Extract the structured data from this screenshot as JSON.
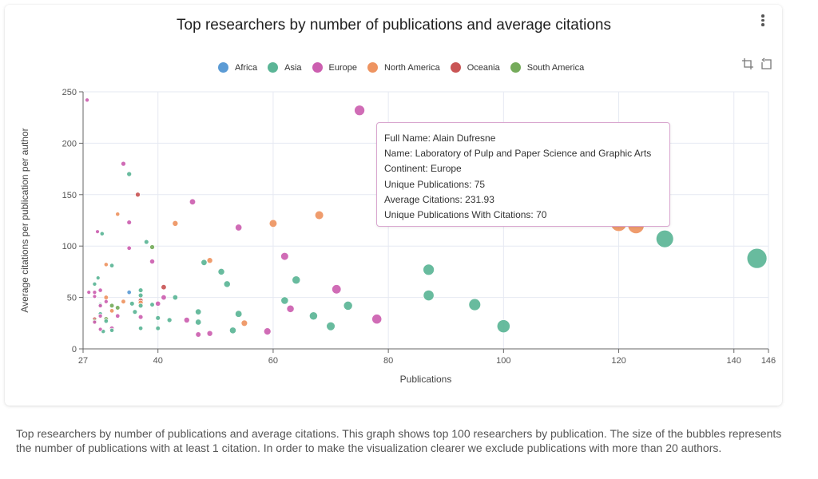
{
  "card": {
    "menu_icon": "more-vertical-icon",
    "tools": [
      {
        "name": "crop-icon",
        "label": "Zoom"
      },
      {
        "name": "reset-zoom-icon",
        "label": "Reset zoom"
      }
    ]
  },
  "tooltip": {
    "lines": [
      "Full Name: Alain Dufresne",
      "Name: Laboratory of Pulp and Paper Science and Graphic Arts",
      "Continent: Europe",
      "Unique Publications: 75",
      "Average Citations: 231.93",
      "Unique Publications With Citations: 70"
    ]
  },
  "caption": "Top researchers by number of publications and average citations. This graph shows top 100 researchers by publication. The size of the bubbles represents the number of publications with at least 1 citation. In order to make the visualization clearer we exclude publications with more than 20 authors.",
  "chart_data": {
    "type": "scatter",
    "title": "Top researchers by number of publications and average citations",
    "xlabel": "Publications",
    "ylabel": "Average citations per publication per author",
    "xlim": [
      27,
      146
    ],
    "ylim": [
      0,
      250
    ],
    "xticks": [
      27,
      40,
      60,
      80,
      100,
      120,
      140,
      146
    ],
    "yticks": [
      0,
      50,
      100,
      150,
      200,
      250
    ],
    "grid": true,
    "legend_position": "top",
    "legend": [
      {
        "name": "Africa",
        "color": "#5b9bd5"
      },
      {
        "name": "Asia",
        "color": "#5bb596"
      },
      {
        "name": "Europe",
        "color": "#cc5fb0"
      },
      {
        "name": "North America",
        "color": "#ee9461"
      },
      {
        "name": "Oceania",
        "color": "#c95555"
      },
      {
        "name": "South America",
        "color": "#75ab5b"
      }
    ],
    "points": [
      {
        "x": 75,
        "y": 231.93,
        "continent": "Europe",
        "with_citations": 70
      },
      {
        "x": 27.7,
        "y": 242,
        "continent": "Europe",
        "with_citations": 27
      },
      {
        "x": 34,
        "y": 180,
        "continent": "Europe",
        "with_citations": 32
      },
      {
        "x": 35,
        "y": 170,
        "continent": "Asia",
        "with_citations": 32
      },
      {
        "x": 36.5,
        "y": 150,
        "continent": "Oceania",
        "with_citations": 32
      },
      {
        "x": 33,
        "y": 131,
        "continent": "North America",
        "with_citations": 28
      },
      {
        "x": 35,
        "y": 123,
        "continent": "Europe",
        "with_citations": 31
      },
      {
        "x": 46,
        "y": 143,
        "continent": "Europe",
        "with_citations": 40
      },
      {
        "x": 43,
        "y": 122,
        "continent": "North America",
        "with_citations": 38
      },
      {
        "x": 54,
        "y": 118,
        "continent": "Europe",
        "with_citations": 45
      },
      {
        "x": 60,
        "y": 122,
        "continent": "North America",
        "with_citations": 52
      },
      {
        "x": 68,
        "y": 130,
        "continent": "North America",
        "with_citations": 58
      },
      {
        "x": 29.5,
        "y": 114,
        "continent": "Europe",
        "with_citations": 26
      },
      {
        "x": 30.3,
        "y": 112,
        "continent": "Asia",
        "with_citations": 28
      },
      {
        "x": 35,
        "y": 98,
        "continent": "Europe",
        "with_citations": 29
      },
      {
        "x": 38,
        "y": 104,
        "continent": "Asia",
        "with_citations": 31
      },
      {
        "x": 39,
        "y": 99,
        "continent": "South America",
        "with_citations": 32
      },
      {
        "x": 39,
        "y": 85,
        "continent": "Europe",
        "with_citations": 33
      },
      {
        "x": 31,
        "y": 82,
        "continent": "North America",
        "with_citations": 28
      },
      {
        "x": 32,
        "y": 81,
        "continent": "Asia",
        "with_citations": 29
      },
      {
        "x": 48,
        "y": 84,
        "continent": "Asia",
        "with_citations": 40
      },
      {
        "x": 49,
        "y": 86,
        "continent": "North America",
        "with_citations": 38
      },
      {
        "x": 51,
        "y": 75,
        "continent": "Asia",
        "with_citations": 44
      },
      {
        "x": 52,
        "y": 63,
        "continent": "Asia",
        "with_citations": 44
      },
      {
        "x": 62,
        "y": 90,
        "continent": "Europe",
        "with_citations": 52
      },
      {
        "x": 64,
        "y": 67,
        "continent": "Asia",
        "with_citations": 55
      },
      {
        "x": 71,
        "y": 58,
        "continent": "Europe",
        "with_citations": 62
      },
      {
        "x": 87,
        "y": 77,
        "continent": "Asia",
        "with_citations": 75
      },
      {
        "x": 87,
        "y": 52,
        "continent": "Asia",
        "with_citations": 72
      },
      {
        "x": 95,
        "y": 43,
        "continent": "Asia",
        "with_citations": 80
      },
      {
        "x": 100,
        "y": 22,
        "continent": "Asia",
        "with_citations": 88
      },
      {
        "x": 120,
        "y": 122,
        "continent": "North America",
        "with_citations": 108
      },
      {
        "x": 123,
        "y": 120,
        "continent": "North America",
        "with_citations": 110
      },
      {
        "x": 128,
        "y": 107,
        "continent": "Asia",
        "with_citations": 118
      },
      {
        "x": 144,
        "y": 88,
        "continent": "Asia",
        "with_citations": 135
      },
      {
        "x": 62,
        "y": 47,
        "continent": "Asia",
        "with_citations": 50
      },
      {
        "x": 63,
        "y": 39,
        "continent": "Europe",
        "with_citations": 50
      },
      {
        "x": 67,
        "y": 32,
        "continent": "Asia",
        "with_citations": 55
      },
      {
        "x": 70,
        "y": 22,
        "continent": "Asia",
        "with_citations": 58
      },
      {
        "x": 73,
        "y": 42,
        "continent": "Asia",
        "with_citations": 60
      },
      {
        "x": 78,
        "y": 29,
        "continent": "Europe",
        "with_citations": 66
      },
      {
        "x": 59,
        "y": 17,
        "continent": "Europe",
        "with_citations": 48
      },
      {
        "x": 54,
        "y": 34,
        "continent": "Asia",
        "with_citations": 46
      },
      {
        "x": 55,
        "y": 25,
        "continent": "North America",
        "with_citations": 42
      },
      {
        "x": 53,
        "y": 18,
        "continent": "Asia",
        "with_citations": 44
      },
      {
        "x": 49,
        "y": 15,
        "continent": "Europe",
        "with_citations": 38
      },
      {
        "x": 47,
        "y": 14,
        "continent": "Europe",
        "with_citations": 36
      },
      {
        "x": 45,
        "y": 28,
        "continent": "Europe",
        "with_citations": 38
      },
      {
        "x": 47,
        "y": 36,
        "continent": "Asia",
        "with_citations": 40
      },
      {
        "x": 47,
        "y": 26,
        "continent": "Asia",
        "with_citations": 40
      },
      {
        "x": 43,
        "y": 50,
        "continent": "Asia",
        "with_citations": 35
      },
      {
        "x": 41,
        "y": 60,
        "continent": "Oceania",
        "with_citations": 35
      },
      {
        "x": 41,
        "y": 50,
        "continent": "Europe",
        "with_citations": 35
      },
      {
        "x": 42,
        "y": 28,
        "continent": "Asia",
        "with_citations": 32
      },
      {
        "x": 40,
        "y": 44,
        "continent": "Europe",
        "with_citations": 34
      },
      {
        "x": 40,
        "y": 30,
        "continent": "Asia",
        "with_citations": 31
      },
      {
        "x": 40,
        "y": 20,
        "continent": "Asia",
        "with_citations": 30
      },
      {
        "x": 39,
        "y": 43,
        "continent": "Asia",
        "with_citations": 30
      },
      {
        "x": 37,
        "y": 57,
        "continent": "Asia",
        "with_citations": 31
      },
      {
        "x": 37,
        "y": 52,
        "continent": "Asia",
        "with_citations": 31
      },
      {
        "x": 37,
        "y": 47,
        "continent": "Oceania",
        "with_citations": 32
      },
      {
        "x": 37,
        "y": 45,
        "continent": "North America",
        "with_citations": 32
      },
      {
        "x": 37,
        "y": 42,
        "continent": "Asia",
        "with_citations": 31
      },
      {
        "x": 37,
        "y": 31,
        "continent": "Europe",
        "with_citations": 31
      },
      {
        "x": 37,
        "y": 20,
        "continent": "Asia",
        "with_citations": 29
      },
      {
        "x": 36,
        "y": 36,
        "continent": "Asia",
        "with_citations": 31
      },
      {
        "x": 35.5,
        "y": 44,
        "continent": "Asia",
        "with_citations": 31
      },
      {
        "x": 35,
        "y": 55,
        "continent": "Africa",
        "with_citations": 29
      },
      {
        "x": 34,
        "y": 46,
        "continent": "North America",
        "with_citations": 30
      },
      {
        "x": 33,
        "y": 40,
        "continent": "South America",
        "with_citations": 30
      },
      {
        "x": 33,
        "y": 32,
        "continent": "Europe",
        "with_citations": 29
      },
      {
        "x": 32,
        "y": 42,
        "continent": "South America",
        "with_citations": 30
      },
      {
        "x": 32,
        "y": 37,
        "continent": "North America",
        "with_citations": 29
      },
      {
        "x": 32,
        "y": 20,
        "continent": "Europe",
        "with_citations": 30
      },
      {
        "x": 32,
        "y": 18,
        "continent": "Asia",
        "with_citations": 28
      },
      {
        "x": 31,
        "y": 50,
        "continent": "North America",
        "with_citations": 30
      },
      {
        "x": 31,
        "y": 46,
        "continent": "Europe",
        "with_citations": 27
      },
      {
        "x": 31,
        "y": 29,
        "continent": "South America",
        "with_citations": 30
      },
      {
        "x": 31,
        "y": 27,
        "continent": "Asia",
        "with_citations": 29
      },
      {
        "x": 30.5,
        "y": 17,
        "continent": "Asia",
        "with_citations": 28
      },
      {
        "x": 30,
        "y": 57,
        "continent": "Europe",
        "with_citations": 28
      },
      {
        "x": 30,
        "y": 43,
        "continent": "Asia",
        "with_citations": 28
      },
      {
        "x": 30,
        "y": 42,
        "continent": "Europe",
        "with_citations": 27
      },
      {
        "x": 30,
        "y": 34,
        "continent": "Asia",
        "with_citations": 28
      },
      {
        "x": 30,
        "y": 32,
        "continent": "Europe",
        "with_citations": 27
      },
      {
        "x": 30,
        "y": 19,
        "continent": "Europe",
        "with_citations": 26
      },
      {
        "x": 29.6,
        "y": 69,
        "continent": "Asia",
        "with_citations": 26
      },
      {
        "x": 29,
        "y": 63,
        "continent": "Asia",
        "with_citations": 27
      },
      {
        "x": 29,
        "y": 55,
        "continent": "Europe",
        "with_citations": 27
      },
      {
        "x": 29,
        "y": 51,
        "continent": "Europe",
        "with_citations": 26
      },
      {
        "x": 29,
        "y": 29,
        "continent": "Oceania",
        "with_citations": 27
      },
      {
        "x": 29,
        "y": 27,
        "continent": "South America",
        "with_citations": 27
      },
      {
        "x": 29,
        "y": 26,
        "continent": "Europe",
        "with_citations": 26
      },
      {
        "x": 28,
        "y": 55,
        "continent": "Europe",
        "with_citations": 26
      }
    ]
  }
}
